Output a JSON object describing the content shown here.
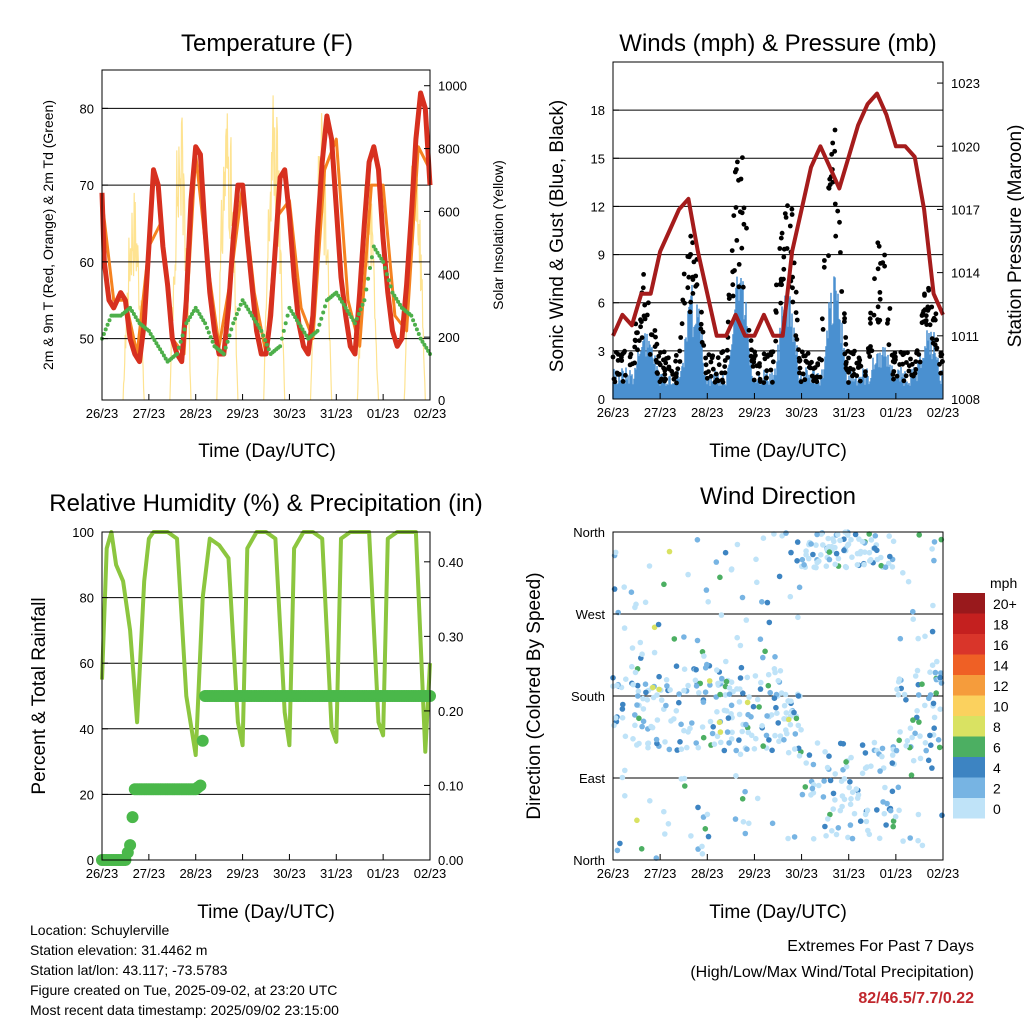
{
  "chart_data": [
    {
      "type": "line",
      "title": "Temperature (F)",
      "xlabel": "Time (Day/UTC)",
      "ylabel": "2m & 9m T (Red, Orange) & 2m Td (Green)",
      "y2label": "Solar Insolation (Yellow)",
      "x_ticks": [
        "26/23",
        "27/23",
        "28/23",
        "29/23",
        "30/23",
        "31/23",
        "01/23",
        "02/23"
      ],
      "ylim": [
        42,
        85
      ],
      "y_ticks": [
        50,
        60,
        70,
        80
      ],
      "y2lim": [
        0,
        1050
      ],
      "y2_ticks": [
        0,
        200,
        400,
        600,
        800,
        1000
      ],
      "series": [
        {
          "color": "#d7301f",
          "x": [
            0,
            0.05,
            0.15,
            0.25,
            0.4,
            0.5,
            0.6,
            0.7,
            0.8,
            0.9,
            1.0,
            1.1,
            1.2,
            1.3,
            1.4,
            1.5,
            1.6,
            1.7,
            1.8,
            1.9,
            2.0,
            2.1,
            2.2,
            2.3,
            2.4,
            2.5,
            2.6,
            2.7,
            2.8,
            2.9,
            3.0,
            3.1,
            3.2,
            3.3,
            3.4,
            3.5,
            3.6,
            3.7,
            3.8,
            3.9,
            4.0,
            4.1,
            4.2,
            4.3,
            4.4,
            4.5,
            4.6,
            4.7,
            4.8,
            4.9,
            5.0,
            5.1,
            5.2,
            5.3,
            5.4,
            5.5,
            5.6,
            5.7,
            5.8,
            5.9,
            6.0,
            6.1,
            6.2,
            6.3,
            6.4,
            6.5,
            6.6,
            6.7,
            6.8,
            6.9,
            7.0
          ],
          "values": [
            69,
            60,
            55,
            54,
            56,
            55,
            50,
            48,
            47,
            52,
            62,
            72,
            70,
            62,
            57,
            50,
            48,
            47,
            55,
            68,
            75,
            74,
            64,
            56,
            51,
            48,
            48,
            54,
            63,
            70,
            70,
            63,
            57,
            51,
            48,
            48,
            53,
            62,
            71,
            72,
            66,
            58,
            52,
            49,
            48,
            53,
            64,
            73,
            79,
            76,
            67,
            58,
            53,
            49,
            48,
            56,
            65,
            73,
            75,
            72,
            63,
            56,
            51,
            49,
            50,
            57,
            66,
            76,
            82,
            80,
            70
          ]
        },
        {
          "color": "#f58220",
          "x": [
            0,
            0.25,
            0.5,
            0.75,
            1.0,
            1.25,
            1.5,
            1.75,
            2.0,
            2.25,
            2.5,
            2.75,
            3.0,
            3.25,
            3.5,
            3.75,
            4.0,
            4.25,
            4.5,
            4.75,
            5.0,
            5.25,
            5.5,
            5.75,
            6.0,
            6.25,
            6.5,
            6.75,
            7.0
          ],
          "values": [
            68,
            55,
            55,
            48,
            62,
            65,
            50,
            48,
            74,
            60,
            49,
            58,
            70,
            56,
            48,
            66,
            68,
            54,
            50,
            72,
            76,
            55,
            49,
            70,
            70,
            53,
            51,
            75,
            72
          ]
        },
        {
          "color": "#4daf4a",
          "x": [
            0,
            0.2,
            0.4,
            0.6,
            0.8,
            1.0,
            1.2,
            1.4,
            1.6,
            1.8,
            2.0,
            2.2,
            2.4,
            2.6,
            2.8,
            3.0,
            3.2,
            3.4,
            3.6,
            3.8,
            4.0,
            4.2,
            4.4,
            4.6,
            4.8,
            5.0,
            5.2,
            5.4,
            5.6,
            5.8,
            6.0,
            6.2,
            6.4,
            6.6,
            6.8,
            7.0
          ],
          "values": [
            50,
            53,
            53,
            54,
            52,
            51,
            49,
            47,
            48,
            52,
            54,
            52,
            49,
            48,
            52,
            55,
            53,
            51,
            48,
            49,
            54,
            52,
            50,
            51,
            55,
            56,
            54,
            52,
            55,
            62,
            60,
            56,
            54,
            53,
            50,
            48
          ]
        }
      ],
      "solar": {
        "color": "#fee391",
        "days": [
          0,
          1,
          2,
          3,
          4,
          5,
          6
        ],
        "peaks": [
          700,
          950,
          990,
          1000,
          920,
          760,
          880
        ]
      }
    },
    {
      "type": "scatter",
      "title": "Winds (mph) & Pressure (mb)",
      "xlabel": "Time (Day/UTC)",
      "ylabel": "Sonic Wind & Gust (Blue, Black)",
      "y2label": "Station Pressure (Maroon)",
      "x_ticks": [
        "26/23",
        "27/23",
        "28/23",
        "29/23",
        "30/23",
        "31/23",
        "01/23",
        "02/23"
      ],
      "ylim": [
        0,
        21
      ],
      "y_ticks": [
        0,
        3,
        6,
        9,
        12,
        15,
        18
      ],
      "y2lim": [
        1008,
        1024
      ],
      "y2_ticks": [
        1008,
        1011,
        1014,
        1017,
        1020,
        1023
      ],
      "wind_color": "#4a90d0",
      "gust_color": "#000000",
      "pressure_color": "#a51c1c",
      "daily_gust_max": [
        7,
        12,
        16,
        15,
        17,
        10,
        7,
        9
      ],
      "daily_wind_max": [
        3,
        6,
        7,
        6,
        6,
        2,
        3,
        4
      ],
      "pressure": {
        "x": [
          0,
          0.2,
          0.4,
          0.6,
          0.8,
          1.0,
          1.2,
          1.4,
          1.6,
          1.8,
          2.0,
          2.2,
          2.4,
          2.6,
          2.8,
          3.0,
          3.2,
          3.4,
          3.6,
          3.8,
          4.0,
          4.2,
          4.4,
          4.6,
          4.8,
          5.0,
          5.2,
          5.4,
          5.6,
          5.8,
          6.0,
          6.2,
          6.4,
          6.6,
          6.8,
          7.0
        ],
        "values": [
          1011,
          1012,
          1011.5,
          1013,
          1013,
          1015,
          1016,
          1017,
          1017.5,
          1015,
          1013,
          1011,
          1011,
          1012,
          1011,
          1011,
          1012,
          1011,
          1011,
          1015,
          1017,
          1019,
          1020,
          1019,
          1018,
          1019.5,
          1021,
          1022,
          1022.5,
          1021.5,
          1020,
          1020,
          1019.5,
          1017,
          1013,
          1012
        ]
      }
    },
    {
      "type": "line",
      "title": "Relative Humidity (%) & Precipitation (in)",
      "xlabel": "Time (Day/UTC)",
      "ylabel": "Percent & Total Rainfall",
      "x_ticks": [
        "26/23",
        "27/23",
        "28/23",
        "29/23",
        "30/23",
        "31/23",
        "01/23",
        "02/23"
      ],
      "ylim": [
        0,
        100
      ],
      "y_ticks": [
        0,
        20,
        40,
        60,
        80,
        100
      ],
      "y2lim": [
        0,
        0.44
      ],
      "y2_ticks": [
        "0.00",
        "0.10",
        "0.20",
        "0.30",
        "0.40"
      ],
      "rh": {
        "color": "#8cc63f",
        "x": [
          0,
          0.1,
          0.2,
          0.3,
          0.45,
          0.6,
          0.75,
          0.9,
          1.0,
          1.1,
          1.2,
          1.4,
          1.6,
          1.8,
          2.0,
          2.15,
          2.3,
          2.5,
          2.7,
          2.9,
          3.0,
          3.1,
          3.3,
          3.5,
          3.7,
          3.9,
          4.0,
          4.1,
          4.3,
          4.5,
          4.7,
          4.9,
          5.0,
          5.1,
          5.3,
          5.5,
          5.7,
          5.9,
          6.0,
          6.1,
          6.3,
          6.5,
          6.7,
          6.9,
          7.0
        ],
        "values": [
          55,
          95,
          100,
          90,
          85,
          70,
          42,
          85,
          98,
          100,
          100,
          100,
          98,
          50,
          32,
          80,
          98,
          96,
          92,
          42,
          35,
          95,
          100,
          100,
          98,
          45,
          35,
          95,
          100,
          100,
          98,
          40,
          36,
          98,
          100,
          100,
          100,
          42,
          38,
          98,
          100,
          100,
          100,
          33,
          60
        ]
      },
      "precip": {
        "color": "#4ab84a",
        "x": [
          0,
          0.5,
          0.6,
          0.7,
          1.8,
          2.0,
          2.1,
          2.2,
          3.0,
          4.0,
          5.0,
          6.0,
          7.0
        ],
        "values": [
          0,
          0,
          0.02,
          0.095,
          0.095,
          0.095,
          0.1,
          0.22,
          0.22,
          0.22,
          0.22,
          0.22,
          0.22
        ]
      }
    },
    {
      "type": "scatter",
      "title": "Wind Direction",
      "xlabel": "Time (Day/UTC)",
      "ylabel": "Direction (Colored By Speed)",
      "x_ticks": [
        "26/23",
        "27/23",
        "28/23",
        "29/23",
        "30/23",
        "31/23",
        "01/23",
        "02/23"
      ],
      "y_ticks": [
        "North",
        "East",
        "South",
        "West",
        "North"
      ],
      "ylim": [
        0,
        360
      ],
      "legend": {
        "title": "mph",
        "labels": [
          "20+",
          "18",
          "16",
          "14",
          "12",
          "10",
          "8",
          "6",
          "4",
          "2",
          "0"
        ],
        "colors": [
          "#99191c",
          "#c4201f",
          "#d9352a",
          "#ef6025",
          "#f59c3c",
          "#fbd15e",
          "#d9e262",
          "#4caf62",
          "#3d84c2",
          "#77b4e3",
          "#bfe3f8"
        ]
      }
    }
  ],
  "info": {
    "location": "Location: Schuylerville",
    "elevation": "Station elevation: 31.4462 m",
    "latlon": "Station lat/lon: 43.117; -73.5783",
    "created": "Figure created on Tue, 2025-09-02, at 23:20 UTC",
    "recent": "Most recent data timestamp: 2025/09/02 23:15:00"
  },
  "extremes": {
    "title": "Extremes For Past 7 Days",
    "subtitle": "(High/Low/Max Wind/Total Precipitation)",
    "values": "82/46.5/7.7/0.22"
  }
}
